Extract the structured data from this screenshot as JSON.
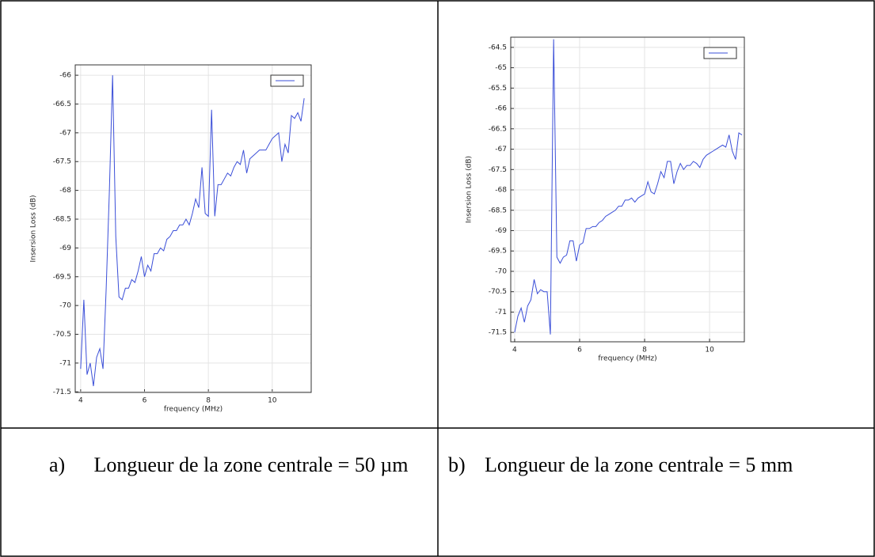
{
  "chart_data": [
    {
      "type": "line",
      "xlabel": "frequency (MHz)",
      "ylabel": "Insersion Loss (dB)",
      "x": [
        4.0,
        4.1,
        4.2,
        4.3,
        4.4,
        4.5,
        4.6,
        4.7,
        4.8,
        4.9,
        5.0,
        5.1,
        5.2,
        5.3,
        5.4,
        5.5,
        5.6,
        5.7,
        5.8,
        5.9,
        6.0,
        6.1,
        6.2,
        6.3,
        6.4,
        6.5,
        6.6,
        6.7,
        6.8,
        6.9,
        7.0,
        7.1,
        7.2,
        7.3,
        7.4,
        7.5,
        7.6,
        7.7,
        7.8,
        7.9,
        8.0,
        8.1,
        8.2,
        8.3,
        8.4,
        8.5,
        8.6,
        8.7,
        8.8,
        8.9,
        9.0,
        9.1,
        9.2,
        9.3,
        9.4,
        9.5,
        9.6,
        9.7,
        9.8,
        9.9,
        10.0,
        10.1,
        10.2,
        10.3,
        10.4,
        10.5,
        10.6,
        10.7,
        10.8,
        10.9,
        11.0
      ],
      "series": [
        {
          "color": "#3b4fd8",
          "values": [
            -71.1,
            -69.9,
            -71.2,
            -71.0,
            -71.4,
            -70.9,
            -70.75,
            -71.1,
            -69.7,
            -68.0,
            -66.0,
            -68.8,
            -69.85,
            -69.9,
            -69.7,
            -69.7,
            -69.55,
            -69.6,
            -69.4,
            -69.15,
            -69.5,
            -69.3,
            -69.4,
            -69.1,
            -69.1,
            -69.0,
            -69.05,
            -68.85,
            -68.8,
            -68.7,
            -68.7,
            -68.6,
            -68.6,
            -68.5,
            -68.6,
            -68.4,
            -68.15,
            -68.3,
            -67.6,
            -68.4,
            -68.45,
            -66.6,
            -68.45,
            -67.9,
            -67.9,
            -67.8,
            -67.7,
            -67.75,
            -67.6,
            -67.5,
            -67.55,
            -67.3,
            -67.7,
            -67.45,
            -67.4,
            -67.35,
            -67.3,
            -67.3,
            -67.3,
            -67.2,
            -67.1,
            -67.05,
            -67.0,
            -67.5,
            -67.2,
            -67.35,
            -66.7,
            -66.75,
            -66.65,
            -66.8,
            -66.4
          ]
        }
      ],
      "xlim": [
        3.83,
        11.22
      ],
      "xticks": [
        4,
        6,
        8,
        10
      ],
      "ylim": [
        -71.51,
        -65.82
      ],
      "yticks": [
        -66,
        -66.5,
        -67,
        -67.5,
        -68,
        -68.5,
        -69,
        -69.5,
        -70,
        -70.5,
        -71,
        -71.5
      ],
      "grid": true,
      "legend": "upper right"
    },
    {
      "type": "line",
      "xlabel": "frequency (MHz)",
      "ylabel": "Insersion Loss (dB)",
      "x": [
        4.0,
        4.1,
        4.2,
        4.3,
        4.4,
        4.5,
        4.6,
        4.7,
        4.8,
        4.9,
        5.0,
        5.1,
        5.2,
        5.3,
        5.4,
        5.5,
        5.6,
        5.7,
        5.8,
        5.9,
        6.0,
        6.1,
        6.2,
        6.3,
        6.4,
        6.5,
        6.6,
        6.7,
        6.8,
        6.9,
        7.0,
        7.1,
        7.2,
        7.3,
        7.4,
        7.5,
        7.6,
        7.7,
        7.8,
        7.9,
        8.0,
        8.1,
        8.2,
        8.3,
        8.4,
        8.5,
        8.6,
        8.7,
        8.8,
        8.9,
        9.0,
        9.1,
        9.2,
        9.3,
        9.4,
        9.5,
        9.6,
        9.7,
        9.8,
        9.9,
        10.0,
        10.1,
        10.2,
        10.3,
        10.4,
        10.5,
        10.6,
        10.7,
        10.8,
        10.9,
        11.0
      ],
      "series": [
        {
          "color": "#3b4fd8",
          "values": [
            -71.5,
            -71.1,
            -70.9,
            -71.25,
            -70.85,
            -70.7,
            -70.2,
            -70.55,
            -70.45,
            -70.5,
            -70.5,
            -71.55,
            -64.3,
            -69.65,
            -69.8,
            -69.65,
            -69.6,
            -69.25,
            -69.25,
            -69.75,
            -69.35,
            -69.3,
            -68.95,
            -68.95,
            -68.9,
            -68.9,
            -68.8,
            -68.75,
            -68.65,
            -68.6,
            -68.55,
            -68.5,
            -68.4,
            -68.4,
            -68.25,
            -68.25,
            -68.2,
            -68.3,
            -68.2,
            -68.15,
            -68.1,
            -67.8,
            -68.05,
            -68.1,
            -67.85,
            -67.55,
            -67.7,
            -67.3,
            -67.3,
            -67.85,
            -67.55,
            -67.35,
            -67.5,
            -67.4,
            -67.4,
            -67.3,
            -67.35,
            -67.45,
            -67.25,
            -67.15,
            -67.1,
            -67.05,
            -67.0,
            -66.95,
            -66.9,
            -66.95,
            -66.65,
            -67.05,
            -67.25,
            -66.6,
            -66.65
          ]
        }
      ],
      "xlim": [
        3.88,
        11.07
      ],
      "xticks": [
        4,
        6,
        8,
        10
      ],
      "ylim": [
        -71.73,
        -64.25
      ],
      "yticks": [
        -64.5,
        -65,
        -65.5,
        -66,
        -66.5,
        -67,
        -67.5,
        -68,
        -68.5,
        -69,
        -69.5,
        -70,
        -70.5,
        -71,
        -71.5
      ],
      "grid": true,
      "legend": "upper right"
    }
  ],
  "captions": [
    {
      "label": "a)",
      "text": "Longueur de la zone centrale = 50 µm"
    },
    {
      "label": "b)",
      "text": "Longueur de la zone centrale = 5 mm"
    }
  ]
}
